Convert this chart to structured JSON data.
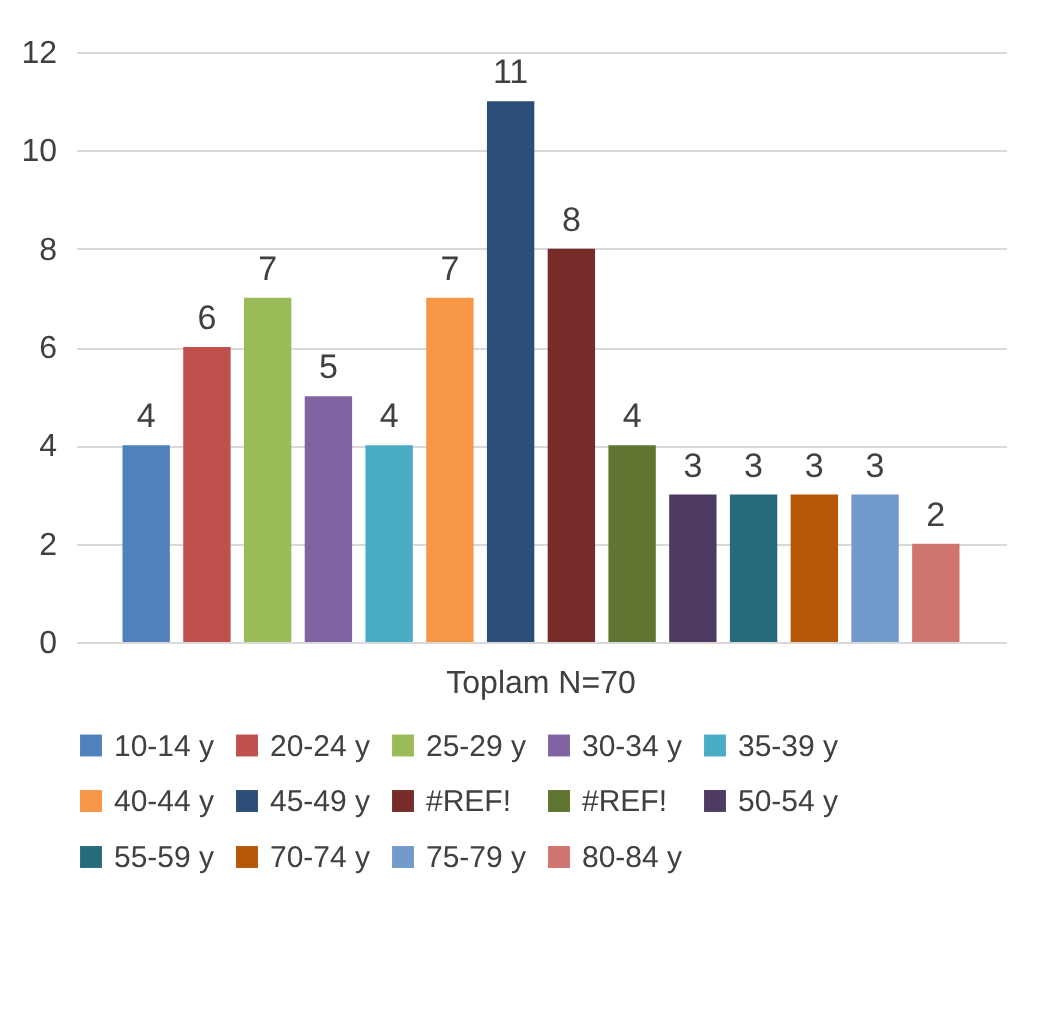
{
  "chart_data": {
    "type": "bar",
    "categories": [
      "Toplam N=70"
    ],
    "ylim": [
      0,
      12
    ],
    "yticks": [
      0,
      2,
      4,
      6,
      8,
      10,
      12
    ],
    "grid": "y",
    "legend": "bottom",
    "data_labels": true,
    "series": [
      {
        "name": "10-14 y",
        "color": "#4f81bd",
        "values": [
          4
        ]
      },
      {
        "name": "20-24 y",
        "color": "#c0504d",
        "values": [
          6
        ]
      },
      {
        "name": "25-29 y",
        "color": "#9bbb59",
        "values": [
          7
        ]
      },
      {
        "name": "30-34 y",
        "color": "#8064a2",
        "values": [
          5
        ]
      },
      {
        "name": "35-39 y",
        "color": "#4bacc6",
        "values": [
          4
        ]
      },
      {
        "name": "40-44 y",
        "color": "#f79646",
        "values": [
          7
        ]
      },
      {
        "name": "45-49 y",
        "color": "#2c4d75",
        "values": [
          11
        ]
      },
      {
        "name": "#REF!",
        "color": "#772c2a",
        "values": [
          8
        ]
      },
      {
        "name": "#REF!",
        "color": "#5f7530",
        "values": [
          4
        ]
      },
      {
        "name": "50-54 y",
        "color": "#4d3b62",
        "values": [
          3
        ]
      },
      {
        "name": "55-59 y",
        "color": "#276a7c",
        "values": [
          3
        ]
      },
      {
        "name": "70-74 y",
        "color": "#b65708",
        "values": [
          3
        ]
      },
      {
        "name": "75-79 y",
        "color": "#729aca",
        "values": [
          3
        ]
      },
      {
        "name": "80-84 y",
        "color": "#d07470",
        "values": [
          2
        ]
      }
    ]
  }
}
